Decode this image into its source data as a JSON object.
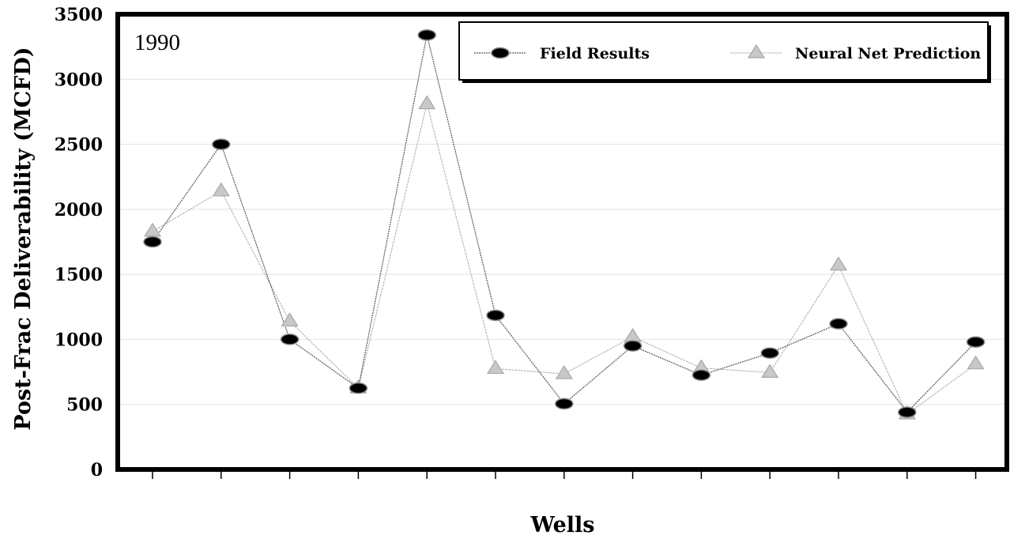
{
  "chart_data": {
    "type": "line",
    "title": "",
    "annotation": "1990",
    "xlabel": "Wells",
    "ylabel": "Post-Frac Deliverability (MCFD)",
    "ylim": [
      0,
      3500
    ],
    "yticks": [
      0,
      500,
      1000,
      1500,
      2000,
      2500,
      3000,
      3500
    ],
    "x": [
      1,
      2,
      3,
      4,
      5,
      6,
      7,
      8,
      9,
      10,
      11,
      12,
      13
    ],
    "grid": true,
    "legend_position": "top-right",
    "series": [
      {
        "name": "Field Results",
        "marker": "ellipse",
        "color": "#000000",
        "line_color": "#555555",
        "values": [
          1750,
          2500,
          1000,
          625,
          3340,
          1185,
          505,
          950,
          725,
          895,
          1120,
          440,
          980
        ]
      },
      {
        "name": "Neural Net Prediction",
        "marker": "triangle",
        "color": "#c8c8c8",
        "line_color": "#b8b8b8",
        "values": [
          1830,
          2140,
          1140,
          625,
          2810,
          775,
          735,
          1020,
          780,
          745,
          1570,
          425,
          810
        ]
      }
    ]
  }
}
